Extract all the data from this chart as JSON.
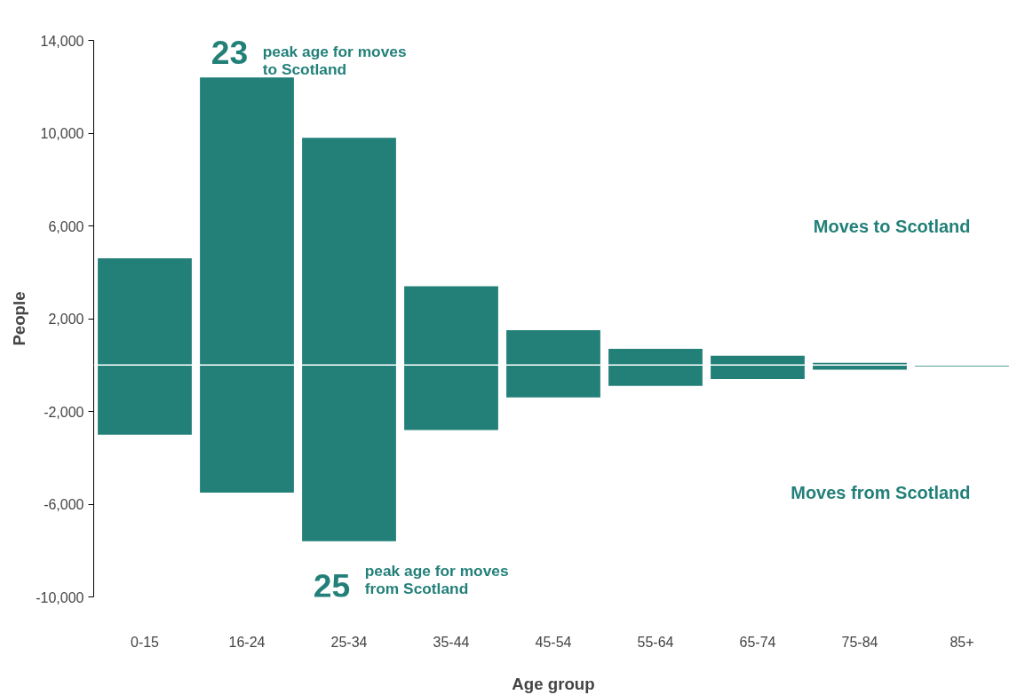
{
  "chart_data": {
    "type": "bar",
    "xlabel": "Age group",
    "ylabel": "People",
    "categories": [
      "0-15",
      "16-24",
      "25-34",
      "35-44",
      "45-54",
      "55-64",
      "65-74",
      "75-84",
      "85+"
    ],
    "series": [
      {
        "color": "#238079",
        "values": [
          4600,
          12400,
          9800,
          3400,
          1500,
          700,
          400,
          100,
          null
        ]
      },
      {
        "color": "#238079",
        "values": [
          -3000,
          -5500,
          -7600,
          -2800,
          -1400,
          -900,
          -600,
          -200,
          -60
        ]
      }
    ],
    "ylim": [
      -10000,
      14000
    ],
    "yticks": [
      {
        "value": -10000,
        "label": "-10,000"
      },
      {
        "value": -6000,
        "label": "-6,000"
      },
      {
        "value": -2000,
        "label": "-2,000"
      },
      {
        "value": 2000,
        "label": "2,000"
      },
      {
        "value": 6000,
        "label": "6,000"
      },
      {
        "value": 10000,
        "label": "10,000"
      },
      {
        "value": 14000,
        "label": "14,000"
      }
    ],
    "ref_lines": [
      {
        "axis": "y",
        "value": 0,
        "label": null,
        "color": "#ffffff"
      }
    ],
    "annotations": [
      "23",
      "peak age for moves to Scotland",
      "25",
      "peak age for moves from Scotland",
      "Moves to Scotland",
      "Moves from Scotland"
    ],
    "grid": false,
    "stacked": true
  }
}
